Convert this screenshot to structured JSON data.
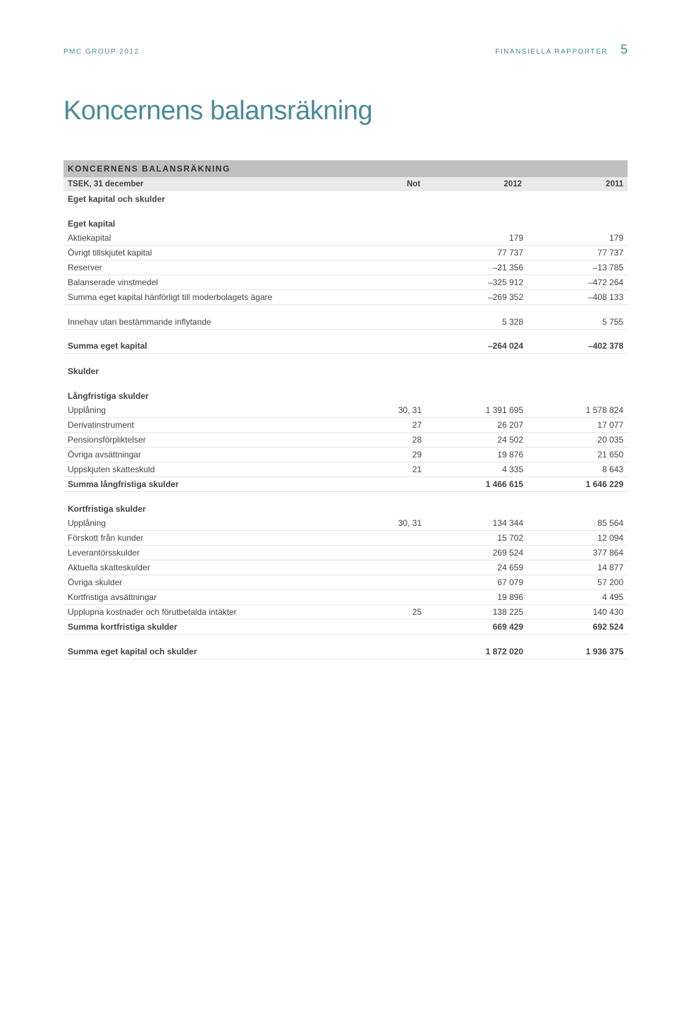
{
  "header": {
    "left": "PMC GROUP 2012",
    "right_text": "FINANSIELLA RAPPORTER",
    "page_number": "5"
  },
  "title": "Koncernens balansräkning",
  "table": {
    "title": "KONCERNENS BALANSRÄKNING",
    "columns": {
      "label": "TSEK, 31 december",
      "not": "Not",
      "y2012": "2012",
      "y2011": "2011"
    },
    "sections": [
      {
        "type": "section",
        "label": "Eget kapital och skulder"
      },
      {
        "type": "spacer"
      },
      {
        "type": "section",
        "label": "Eget kapital"
      },
      {
        "type": "data",
        "label": "Aktiekapital",
        "not": "",
        "y2012": "179",
        "y2011": "179"
      },
      {
        "type": "data",
        "label": "Övrigt tillskjutet kapital",
        "not": "",
        "y2012": "77 737",
        "y2011": "77 737"
      },
      {
        "type": "data",
        "label": "Reserver",
        "not": "",
        "y2012": "–21 356",
        "y2011": "–13 785"
      },
      {
        "type": "data",
        "label": "Balanserade vinstmedel",
        "not": "",
        "y2012": "–325 912",
        "y2011": "–472 264"
      },
      {
        "type": "data",
        "label": "Summa eget kapital hänförligt till moderbolagets ägare",
        "not": "",
        "y2012": "–269 352",
        "y2011": "–408 133"
      },
      {
        "type": "spacer"
      },
      {
        "type": "data",
        "label": "Innehav utan bestämmande inflytande",
        "not": "",
        "y2012": "5 328",
        "y2011": "5 755"
      },
      {
        "type": "spacer"
      },
      {
        "type": "bold",
        "label": "Summa eget kapital",
        "not": "",
        "y2012": "–264 024",
        "y2011": "–402 378"
      },
      {
        "type": "spacer"
      },
      {
        "type": "section",
        "label": "Skulder"
      },
      {
        "type": "spacer"
      },
      {
        "type": "section",
        "label": "Långfristiga skulder"
      },
      {
        "type": "data",
        "label": "Upplåning",
        "not": "30, 31",
        "y2012": "1 391 695",
        "y2011": "1 578 824"
      },
      {
        "type": "data",
        "label": "Derivatinstrument",
        "not": "27",
        "y2012": "26 207",
        "y2011": "17 077"
      },
      {
        "type": "data",
        "label": "Pensionsförpliktelser",
        "not": "28",
        "y2012": "24 502",
        "y2011": "20 035"
      },
      {
        "type": "data",
        "label": "Övriga avsättningar",
        "not": "29",
        "y2012": "19 876",
        "y2011": "21 650"
      },
      {
        "type": "data",
        "label": "Uppskjuten skatteskuld",
        "not": "21",
        "y2012": "4 335",
        "y2011": "8 643"
      },
      {
        "type": "bold",
        "label": "Summa långfristiga skulder",
        "not": "",
        "y2012": "1 466 615",
        "y2011": "1 646 229"
      },
      {
        "type": "spacer"
      },
      {
        "type": "section",
        "label": "Kortfristiga skulder"
      },
      {
        "type": "data",
        "label": "Upplåning",
        "not": "30, 31",
        "y2012": "134 344",
        "y2011": "85 564"
      },
      {
        "type": "data",
        "label": "Förskott från kunder",
        "not": "",
        "y2012": "15 702",
        "y2011": "12 094"
      },
      {
        "type": "data",
        "label": "Leverantörsskulder",
        "not": "",
        "y2012": "269 524",
        "y2011": "377 864"
      },
      {
        "type": "data",
        "label": "Aktuella skatteskulder",
        "not": "",
        "y2012": "24 659",
        "y2011": "14 877"
      },
      {
        "type": "data",
        "label": "Övriga skulder",
        "not": "",
        "y2012": "67 079",
        "y2011": "57 200"
      },
      {
        "type": "data",
        "label": "Kortfristiga avsättningar",
        "not": "",
        "y2012": "19 896",
        "y2011": "4 495"
      },
      {
        "type": "data",
        "label": "Upplupna kostnader och förutbetalda intäkter",
        "not": "25",
        "y2012": "138 225",
        "y2011": "140 430"
      },
      {
        "type": "bold",
        "label": "Summa kortfristiga skulder",
        "not": "",
        "y2012": "669 429",
        "y2011": "692 524"
      },
      {
        "type": "spacer"
      },
      {
        "type": "bold",
        "label": "Summa eget kapital och skulder",
        "not": "",
        "y2012": "1 872 020",
        "y2011": "1 936 375"
      }
    ]
  }
}
